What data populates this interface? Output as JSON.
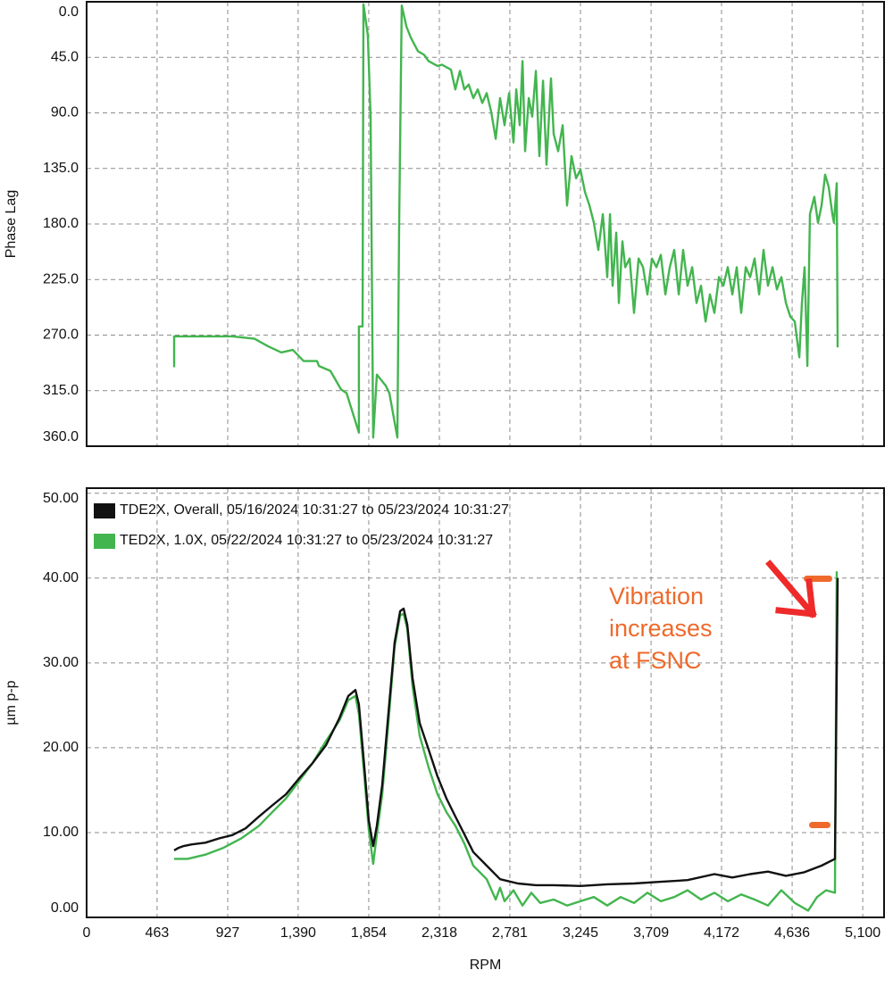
{
  "chart_data": [
    {
      "type": "line",
      "ylabel": "Phase Lag",
      "y_inverted": true,
      "grid": true,
      "xlim": [
        0,
        5240
      ],
      "ylim": [
        0,
        360
      ],
      "yticks": [
        {
          "value": 0,
          "label": "0.0"
        },
        {
          "value": 45,
          "label": "45.0"
        },
        {
          "value": 90,
          "label": "90.0"
        },
        {
          "value": 135,
          "label": "135.0"
        },
        {
          "value": 180,
          "label": "180.0"
        },
        {
          "value": 225,
          "label": "225.0"
        },
        {
          "value": 270,
          "label": "270.0"
        },
        {
          "value": 315,
          "label": "315.0"
        },
        {
          "value": 360,
          "label": "360.0"
        }
      ],
      "series": [
        {
          "color": "#43b54f",
          "x": [
            575,
            575,
            957,
            1103,
            1191,
            1279,
            1355,
            1426,
            1514,
            1526,
            1602,
            1672,
            1708,
            1789,
            1789,
            1813,
            1819,
            1848,
            1866,
            1883,
            1907,
            1966,
            1989,
            2042,
            2054,
            2071,
            2101,
            2130,
            2177,
            2218,
            2247,
            2306,
            2335,
            2394,
            2423,
            2453,
            2482,
            2511,
            2541,
            2570,
            2600,
            2629,
            2658,
            2688,
            2717,
            2746,
            2776,
            2805,
            2823,
            2846,
            2864,
            2881,
            2905,
            2928,
            2952,
            2975,
            2999,
            3022,
            3051,
            3069,
            3098,
            3128,
            3157,
            3186,
            3216,
            3245,
            3274,
            3304,
            3333,
            3362,
            3392,
            3421,
            3439,
            3456,
            3480,
            3497,
            3521,
            3539,
            3568,
            3597,
            3627,
            3656,
            3685,
            3715,
            3744,
            3773,
            3803,
            3832,
            3861,
            3891,
            3920,
            3949,
            3979,
            4008,
            4037,
            4067,
            4096,
            4125,
            4155,
            4184,
            4213,
            4243,
            4272,
            4301,
            4331,
            4360,
            4389,
            4419,
            4448,
            4477,
            4507,
            4536,
            4565,
            4595,
            4624,
            4653,
            4683,
            4700,
            4718,
            4736,
            4753,
            4782,
            4806,
            4829,
            4853,
            4876,
            4900,
            4911,
            4929,
            4935
          ],
          "values": [
            296,
            271,
            271,
            273,
            279,
            284,
            282,
            291,
            291,
            295,
            299,
            314,
            317,
            349,
            263,
            263,
            2,
            27,
            93,
            353,
            302,
            311,
            317,
            353,
            179,
            3,
            20,
            29,
            40,
            43,
            48,
            52,
            51,
            55,
            71,
            56,
            71,
            67,
            78,
            71,
            82,
            74,
            89,
            111,
            78,
            100,
            74,
            114,
            71,
            100,
            48,
            121,
            78,
            93,
            56,
            125,
            64,
            132,
            62,
            107,
            121,
            100,
            165,
            125,
            143,
            136,
            154,
            165,
            179,
            201,
            172,
            223,
            172,
            230,
            187,
            244,
            194,
            215,
            208,
            252,
            208,
            215,
            237,
            208,
            215,
            205,
            237,
            215,
            201,
            237,
            201,
            230,
            215,
            244,
            230,
            259,
            237,
            252,
            223,
            230,
            215,
            237,
            215,
            252,
            215,
            223,
            208,
            237,
            201,
            230,
            215,
            233,
            223,
            244,
            255,
            259,
            288,
            244,
            215,
            295,
            172,
            158,
            179,
            165,
            140,
            150,
            172,
            179,
            147,
            280
          ]
        }
      ]
    },
    {
      "type": "line",
      "xlabel": "RPM",
      "ylabel": "µm p-p",
      "grid": true,
      "xlim": [
        0,
        5240
      ],
      "ylim": [
        0,
        50.6
      ],
      "xticks": [
        0,
        463,
        927,
        {
          "value": 1390,
          "label": "1,390"
        },
        {
          "value": 1854,
          "label": "1,854"
        },
        {
          "value": 2318,
          "label": "2,318"
        },
        {
          "value": 2781,
          "label": "2,781"
        },
        {
          "value": 3245,
          "label": "3,245"
        },
        {
          "value": 3709,
          "label": "3,709"
        },
        {
          "value": 4172,
          "label": "4,172"
        },
        {
          "value": 4636,
          "label": "4,636"
        },
        {
          "value": 5100,
          "label": "5,100"
        }
      ],
      "yticks": [
        {
          "value": 0,
          "label": "0.00"
        },
        {
          "value": 10,
          "label": "10.00"
        },
        {
          "value": 20,
          "label": "20.00"
        },
        {
          "value": 30,
          "label": "30.00"
        },
        {
          "value": 40,
          "label": "40.00"
        },
        {
          "value": 50,
          "label": "50.00"
        }
      ],
      "annotation": [
        "Vibration",
        "increases",
        "at FSNC"
      ],
      "series": [
        {
          "name": "TDE2X, Overall, 05/16/2024  10:31:27 to 05/23/2024 10:31:27",
          "color": "#111111",
          "x": [
            575,
            604,
            634,
            692,
            780,
            868,
            957,
            1045,
            1133,
            1220,
            1309,
            1397,
            1485,
            1573,
            1661,
            1719,
            1766,
            1789,
            1825,
            1854,
            1883,
            1907,
            1942,
            1983,
            2024,
            2060,
            2083,
            2107,
            2142,
            2189,
            2247,
            2306,
            2365,
            2423,
            2482,
            2541,
            2629,
            2717,
            2834,
            2952,
            3069,
            3245,
            3421,
            3597,
            3773,
            3949,
            4125,
            4243,
            4360,
            4477,
            4595,
            4712,
            4829,
            4917,
            4935
          ],
          "values": [
            7.9,
            8.2,
            8.4,
            8.6,
            8.8,
            9.3,
            9.7,
            10.5,
            11.9,
            13.2,
            14.5,
            16.4,
            18.2,
            20.3,
            23.5,
            26.1,
            26.8,
            25.1,
            17.7,
            11.4,
            8.4,
            10.8,
            15.6,
            24.0,
            32.4,
            36.1,
            36.4,
            34.5,
            28.2,
            22.9,
            19.8,
            16.6,
            14.0,
            11.9,
            9.8,
            7.7,
            6.1,
            4.5,
            4.0,
            3.8,
            3.8,
            3.7,
            3.9,
            4.0,
            4.2,
            4.4,
            5.1,
            4.7,
            5.1,
            5.4,
            4.9,
            5.3,
            6.1,
            6.9,
            40.0
          ]
        },
        {
          "name": "TED2X, 1.0X, 05/22/2024 10:31:27 to 05/23/2024 10:31:27",
          "color": "#43b54f",
          "x": [
            575,
            663,
            780,
            898,
            1015,
            1133,
            1220,
            1309,
            1397,
            1485,
            1573,
            1661,
            1719,
            1766,
            1789,
            1825,
            1854,
            1883,
            1907,
            1942,
            1983,
            2024,
            2060,
            2083,
            2107,
            2142,
            2189,
            2247,
            2306,
            2365,
            2423,
            2482,
            2541,
            2629,
            2688,
            2717,
            2746,
            2805,
            2864,
            2922,
            2981,
            3069,
            3157,
            3245,
            3333,
            3421,
            3509,
            3597,
            3685,
            3773,
            3861,
            3949,
            4037,
            4125,
            4213,
            4301,
            4389,
            4477,
            4565,
            4653,
            4741,
            4800,
            4859,
            4917,
            4929
          ],
          "values": [
            6.9,
            6.9,
            7.4,
            8.2,
            9.3,
            10.8,
            12.4,
            14.0,
            16.1,
            18.2,
            20.8,
            23.2,
            25.6,
            26.1,
            24.0,
            16.6,
            10.3,
            6.3,
            9.8,
            14.5,
            22.9,
            31.9,
            35.6,
            35.8,
            34.0,
            27.2,
            21.4,
            17.7,
            14.5,
            12.4,
            10.8,
            8.7,
            6.1,
            4.5,
            2.1,
            3.5,
            1.9,
            3.2,
            1.4,
            2.9,
            1.7,
            2.1,
            1.4,
            1.9,
            2.4,
            1.4,
            2.4,
            1.7,
            2.9,
            1.9,
            2.4,
            3.2,
            2.1,
            2.9,
            1.9,
            2.7,
            2.1,
            1.4,
            3.2,
            1.7,
            0.8,
            2.4,
            3.2,
            2.9,
            40.8
          ]
        }
      ]
    }
  ]
}
